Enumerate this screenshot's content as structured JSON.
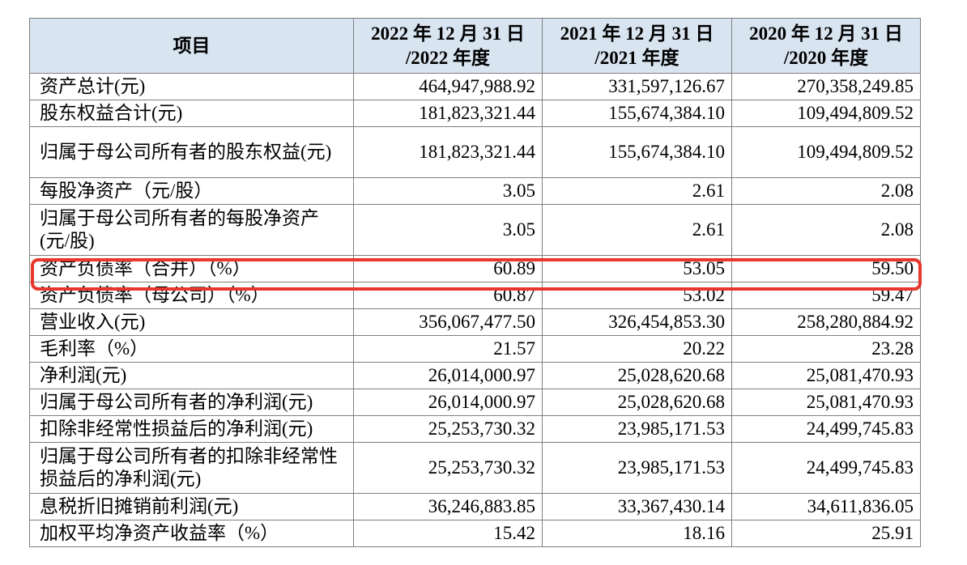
{
  "table": {
    "headers": [
      "项目",
      "2022 年 12 月 31 日\n/2022 年度",
      "2021 年 12 月 31 日\n/2021 年度",
      "2020 年 12 月 31 日\n/2020 年度"
    ],
    "rows": [
      {
        "label": "资产总计(元)",
        "v2022": "464,947,988.92",
        "v2021": "331,597,126.67",
        "v2020": "270,358,249.85"
      },
      {
        "label": "股东权益合计(元)",
        "v2022": "181,823,321.44",
        "v2021": "155,674,384.10",
        "v2020": "109,494,809.52"
      },
      {
        "label": "归属于母公司所有者的股东权益(元)",
        "v2022": "181,823,321.44",
        "v2021": "155,674,384.10",
        "v2020": "109,494,809.52"
      },
      {
        "label": "每股净资产（元/股）",
        "v2022": "3.05",
        "v2021": "2.61",
        "v2020": "2.08"
      },
      {
        "label": "归属于母公司所有者的每股净资产(元/股)",
        "v2022": "3.05",
        "v2021": "2.61",
        "v2020": "2.08"
      },
      {
        "label": "资产负债率（合并）（%）",
        "v2022": "60.89",
        "v2021": "53.05",
        "v2020": "59.50"
      },
      {
        "label": "资产负债率（母公司）（%）",
        "v2022": "60.87",
        "v2021": "53.02",
        "v2020": "59.47"
      },
      {
        "label": "营业收入(元)",
        "v2022": "356,067,477.50",
        "v2021": "326,454,853.30",
        "v2020": "258,280,884.92"
      },
      {
        "label": "毛利率（%）",
        "v2022": "21.57",
        "v2021": "20.22",
        "v2020": "23.28"
      },
      {
        "label": "净利润(元)",
        "v2022": "26,014,000.97",
        "v2021": "25,028,620.68",
        "v2020": "25,081,470.93"
      },
      {
        "label": "归属于母公司所有者的净利润(元)",
        "v2022": "26,014,000.97",
        "v2021": "25,028,620.68",
        "v2020": "25,081,470.93"
      },
      {
        "label": "扣除非经常性损益后的净利润(元)",
        "v2022": "25,253,730.32",
        "v2021": "23,985,171.53",
        "v2020": "24,499,745.83"
      },
      {
        "label": "归属于母公司所有者的扣除非经常性损益后的净利润(元)",
        "v2022": "25,253,730.32",
        "v2021": "23,985,171.53",
        "v2020": "24,499,745.83"
      },
      {
        "label": "息税折旧摊销前利润(元)",
        "v2022": "36,246,883.85",
        "v2021": "33,367,430.14",
        "v2020": "34,611,836.05"
      },
      {
        "label": "加权平均净资产收益率（%）",
        "v2022": "15.42",
        "v2021": "18.16",
        "v2020": "25.91"
      }
    ]
  },
  "highlight": {
    "color": "#e8372c"
  }
}
